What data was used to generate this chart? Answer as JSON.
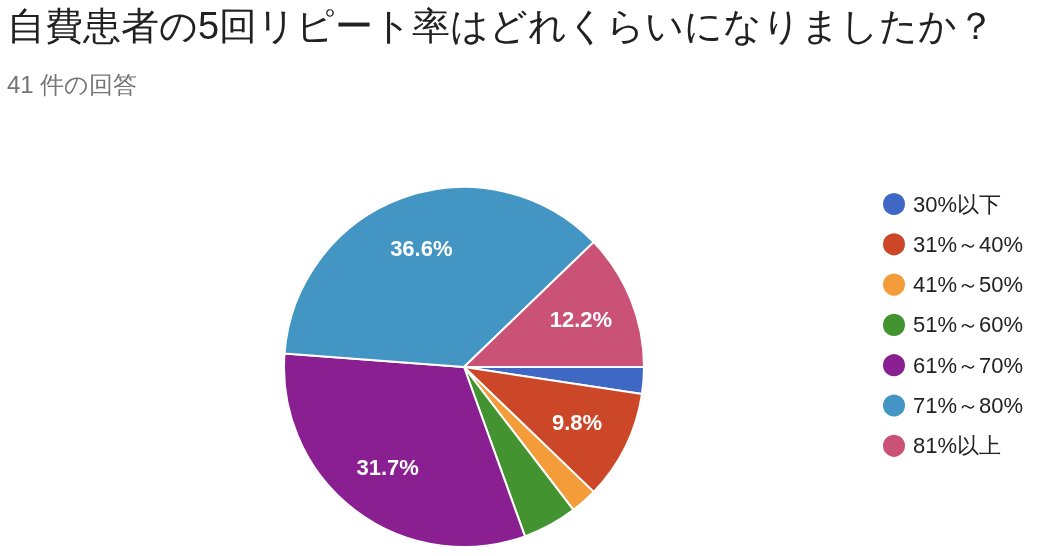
{
  "chart_data": {
    "type": "pie",
    "title": "自費患者の5回リピート率はどれくらいになりましたか？",
    "subtitle": "41 件の回答",
    "categories": [
      "30%以下",
      "31%～40%",
      "41%～50%",
      "51%～60%",
      "61%～70%",
      "71%～80%",
      "81%以上"
    ],
    "values": [
      2.4,
      9.8,
      2.4,
      4.9,
      31.7,
      36.6,
      12.2
    ],
    "colors": [
      "#3f68c5",
      "#cc4628",
      "#f49b3a",
      "#439431",
      "#8a1f91",
      "#4396c3",
      "#cb5277"
    ],
    "value_labels": [
      null,
      "9.8%",
      null,
      null,
      "31.7%",
      "36.6%",
      "12.2%"
    ],
    "legend": "right"
  }
}
